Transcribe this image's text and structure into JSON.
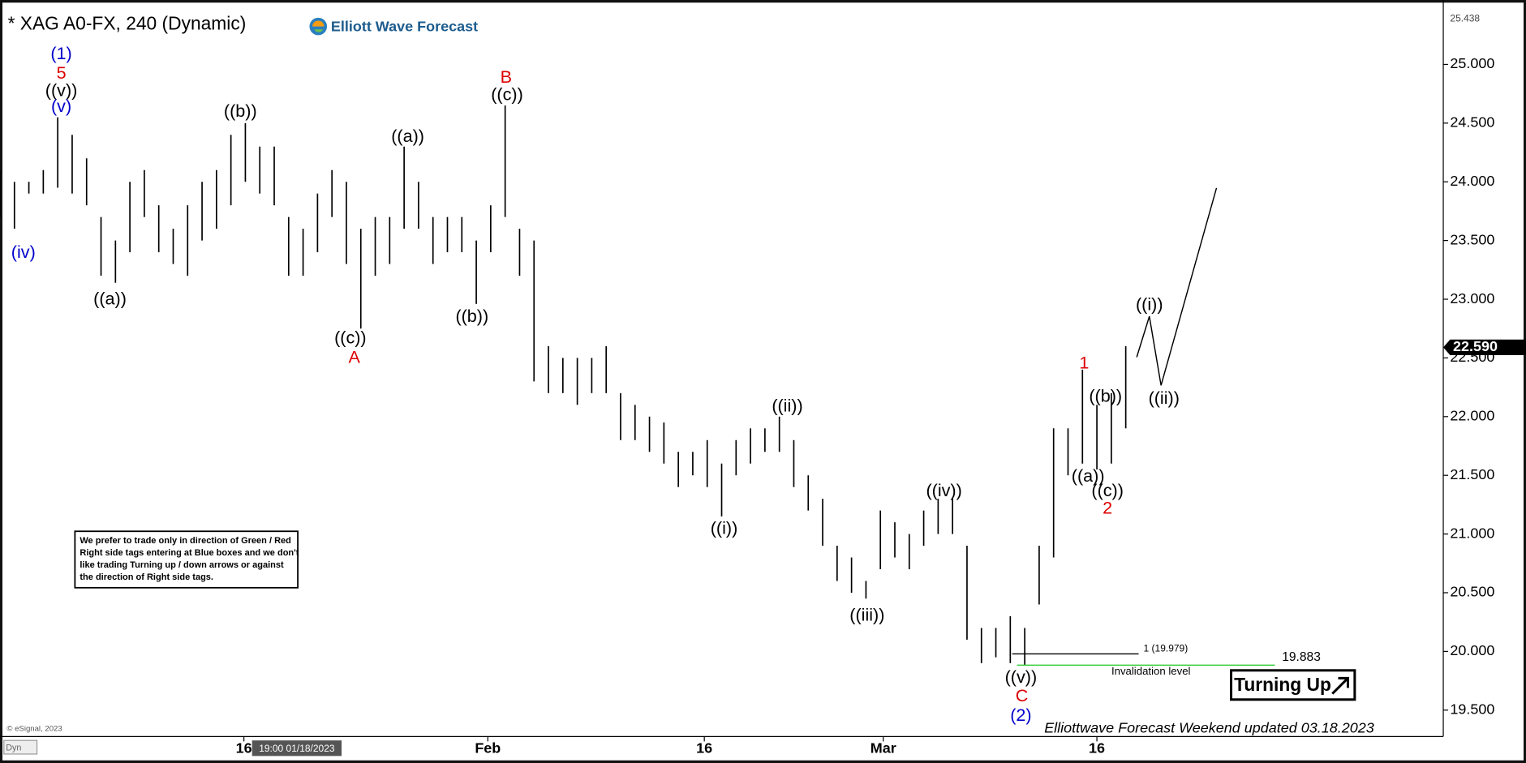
{
  "chart_data": {
    "type": "ohlc",
    "title": "* XAG A0-FX, 240 (Dynamic)",
    "brand": "Elliott Wave Forecast",
    "color": "#000000",
    "x": [
      0,
      1,
      2,
      3,
      4,
      5,
      6,
      7,
      8,
      9,
      10,
      11,
      12,
      13,
      14,
      15,
      16,
      17,
      18,
      19,
      20,
      21,
      22,
      23,
      24,
      25,
      26,
      27,
      28,
      29,
      30,
      31,
      32,
      33,
      34,
      35,
      36,
      37,
      38,
      39,
      40,
      41,
      42,
      43,
      44,
      45,
      46,
      47,
      48,
      49,
      50,
      51,
      52,
      53,
      54,
      55,
      56,
      57,
      58,
      59,
      60,
      61,
      62,
      63,
      64,
      65,
      66,
      67,
      68,
      69,
      70,
      71,
      72,
      73,
      74,
      75,
      76,
      77,
      78
    ],
    "high": [
      24.1,
      24.0,
      24.0,
      24.1,
      24.55,
      24.4,
      24.2,
      23.7,
      23.5,
      24.0,
      24.1,
      23.8,
      23.6,
      23.8,
      24.0,
      24.1,
      24.4,
      24.5,
      24.3,
      24.3,
      23.7,
      23.6,
      23.9,
      24.1,
      24.0,
      23.6,
      23.7,
      23.7,
      24.3,
      24.0,
      23.7,
      23.7,
      23.7,
      23.5,
      23.8,
      24.65,
      23.6,
      23.5,
      22.6,
      22.5,
      22.5,
      22.5,
      22.6,
      22.2,
      22.1,
      22.0,
      21.95,
      21.7,
      21.7,
      21.8,
      21.6,
      21.8,
      21.9,
      21.9,
      22.0,
      21.8,
      21.5,
      21.3,
      20.9,
      20.8,
      20.6,
      21.2,
      21.1,
      21.0,
      21.2,
      21.3,
      21.3,
      20.9,
      20.2,
      20.2,
      20.3,
      20.2,
      20.9,
      21.9,
      21.9,
      22.4,
      22.1,
      22.2,
      22.6
    ],
    "low": [
      23.7,
      23.6,
      23.9,
      23.9,
      23.95,
      23.9,
      23.8,
      23.2,
      23.14,
      23.4,
      23.7,
      23.4,
      23.3,
      23.2,
      23.5,
      23.6,
      23.8,
      24.0,
      23.9,
      23.8,
      23.2,
      23.2,
      23.4,
      23.7,
      23.3,
      22.75,
      23.2,
      23.3,
      23.6,
      23.6,
      23.3,
      23.4,
      23.4,
      22.96,
      23.4,
      23.7,
      23.2,
      22.3,
      22.2,
      22.2,
      22.1,
      22.2,
      22.2,
      21.8,
      21.8,
      21.7,
      21.6,
      21.4,
      21.5,
      21.4,
      21.15,
      21.5,
      21.6,
      21.7,
      21.7,
      21.4,
      21.2,
      20.9,
      20.6,
      20.5,
      20.45,
      20.7,
      20.8,
      20.7,
      20.9,
      21.0,
      21.0,
      20.1,
      19.9,
      19.95,
      19.9,
      19.88,
      20.4,
      20.8,
      21.5,
      21.6,
      21.55,
      21.6,
      21.9
    ],
    "xlim": [
      0,
      100
    ],
    "ylim": [
      19.275,
      25.464
    ],
    "xticks": [
      {
        "value": 16.9,
        "label": "16"
      },
      {
        "value": 33.8,
        "label": "Feb"
      },
      {
        "value": 48.8,
        "label": "16"
      },
      {
        "value": 61.2,
        "label": "Mar"
      },
      {
        "value": 76.0,
        "label": "16"
      }
    ],
    "yticks": [
      {
        "value": 19.5,
        "label": "19.500"
      },
      {
        "value": 20,
        "label": "20.000"
      },
      {
        "value": 20.5,
        "label": "20.500"
      },
      {
        "value": 21,
        "label": "21.000"
      },
      {
        "value": 21.5,
        "label": "21.500"
      },
      {
        "value": 22,
        "label": "22.000"
      },
      {
        "value": 22.5,
        "label": "22.500"
      },
      {
        "value": 23,
        "label": "23.000"
      },
      {
        "value": 23.5,
        "label": "23.500"
      },
      {
        "value": 24,
        "label": "24.000"
      },
      {
        "value": 24.5,
        "label": "24.500"
      },
      {
        "value": 25,
        "label": "25.000"
      }
    ],
    "axis_top_value": 25.438,
    "last_price": {
      "value": 22.59,
      "label": "22.590"
    },
    "levels": [
      {
        "value": 19.979,
        "label": "1 (19.979)",
        "color": "#000000"
      },
      {
        "value": 19.883,
        "label": "19.883",
        "color": "#33cc33"
      }
    ],
    "invalidation_label": "Invalidation level",
    "wave_labels": [
      {
        "text": "(1)",
        "color": "#0000cc"
      },
      {
        "text": "5",
        "color": "#dd0000"
      },
      {
        "text": "((v))",
        "color": "#000000"
      },
      {
        "text": "(v)",
        "color": "#0000cc"
      },
      {
        "text": "(iv)",
        "color": "#0000cc"
      },
      {
        "text": "((a))",
        "color": "#000000"
      },
      {
        "text": "((b))",
        "color": "#000000"
      },
      {
        "text": "((a))",
        "color": "#000000"
      },
      {
        "text": "((c))",
        "color": "#000000"
      },
      {
        "text": "A",
        "color": "#dd0000"
      },
      {
        "text": "B",
        "color": "#dd0000"
      },
      {
        "text": "((c))",
        "color": "#000000"
      },
      {
        "text": "((b))",
        "color": "#000000"
      },
      {
        "text": "((i))",
        "color": "#000000"
      },
      {
        "text": "((ii))",
        "color": "#000000"
      },
      {
        "text": "((iii))",
        "color": "#000000"
      },
      {
        "text": "((iv))",
        "color": "#000000"
      },
      {
        "text": "((v))",
        "color": "#000000"
      },
      {
        "text": "C",
        "color": "#dd0000"
      },
      {
        "text": "(2)",
        "color": "#0000cc"
      },
      {
        "text": "1",
        "color": "#dd0000"
      },
      {
        "text": "((b))",
        "color": "#000000"
      },
      {
        "text": "((a))",
        "color": "#000000"
      },
      {
        "text": "((c))",
        "color": "#000000"
      },
      {
        "text": "2",
        "color": "#dd0000"
      },
      {
        "text": "((i))",
        "color": "#000000"
      },
      {
        "text": "((ii))",
        "color": "#000000"
      }
    ],
    "note": [
      "We prefer to trade only in direction of Green / Red",
      "Right side tags entering at Blue boxes and we don't",
      "like trading Turning up / down arrows or against",
      "the direction of Right side tags."
    ],
    "signal": "Turning Up",
    "copyright": "© eSignal, 2023",
    "footer": "Elliottwave Forecast Weekend updated 03.18.2023",
    "cursor_time": "19:00 01/18/2023",
    "mode": "Dyn"
  }
}
